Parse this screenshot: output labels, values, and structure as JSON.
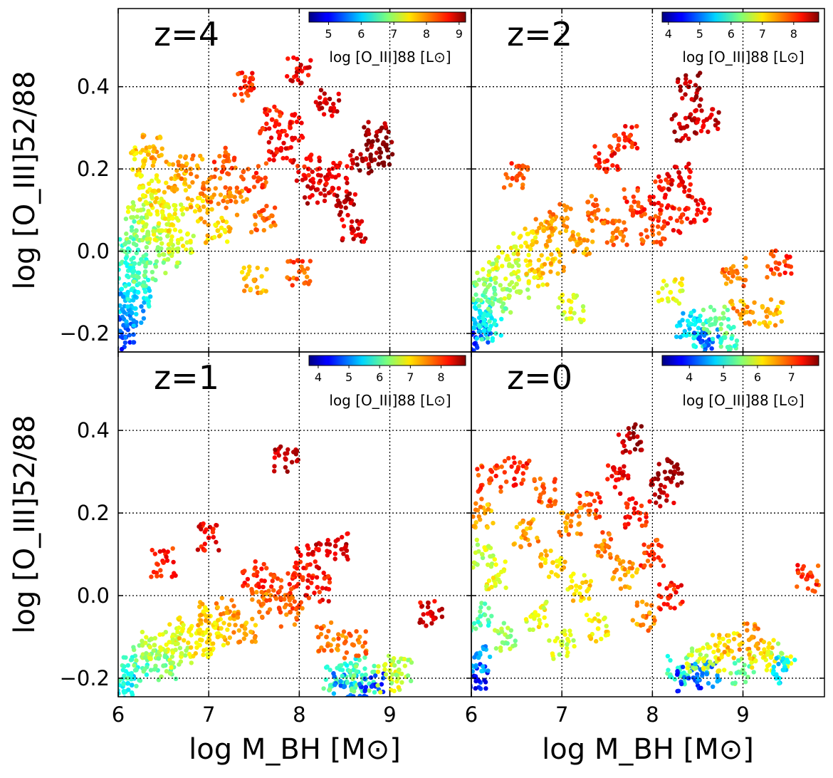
{
  "chart_data": {
    "type": "scatter",
    "colormap": "jet",
    "xlabel": "log M_BH [M⊙]",
    "ylabel": "log [O_III]52/88",
    "xlim": [
      6.0,
      9.9
    ],
    "ylim": [
      -0.245,
      0.59
    ],
    "x_ticks": [
      "6",
      "7",
      "8",
      "9"
    ],
    "y_ticks": [
      "−0.2",
      "0.0",
      "0.2",
      "0.4"
    ],
    "x_tick_values": [
      6,
      7,
      8,
      9
    ],
    "y_tick_values": [
      -0.2,
      0.0,
      0.2,
      0.4
    ],
    "grid": true,
    "colorbar_label": "log [O_III]88 [L⊙]",
    "colorbar_placement": "top-right",
    "panels": [
      {
        "label": "z=4",
        "colorbar_range": [
          4.4,
          9.2
        ],
        "colorbar_ticks": [
          "5",
          "6",
          "7",
          "8",
          "9"
        ],
        "colorbar_tick_values": [
          5,
          6,
          7,
          8,
          9
        ],
        "points": [
          [
            6.05,
            -0.21,
            5.2
          ],
          [
            6.06,
            -0.18,
            5.5
          ],
          [
            6.08,
            -0.12,
            5.9
          ],
          [
            6.1,
            -0.06,
            6.3
          ],
          [
            6.12,
            0.0,
            6.6
          ],
          [
            6.15,
            -0.15,
            5.8
          ],
          [
            6.18,
            -0.03,
            6.5
          ],
          [
            6.2,
            0.05,
            6.8
          ],
          [
            6.22,
            -0.1,
            6.2
          ],
          [
            6.25,
            0.1,
            7.1
          ],
          [
            6.28,
            0.22,
            7.6
          ],
          [
            6.3,
            -0.05,
            6.7
          ],
          [
            6.33,
            0.04,
            7.0
          ],
          [
            6.35,
            0.15,
            7.4
          ],
          [
            6.4,
            0.25,
            7.8
          ],
          [
            6.45,
            0.05,
            7.2
          ],
          [
            6.5,
            0.12,
            7.5
          ],
          [
            6.55,
            -0.02,
            7.0
          ],
          [
            6.6,
            0.08,
            7.4
          ],
          [
            6.65,
            0.18,
            7.7
          ],
          [
            6.7,
            0.03,
            7.3
          ],
          [
            6.8,
            0.2,
            7.9
          ],
          [
            6.9,
            0.1,
            7.7
          ],
          [
            7.0,
            0.15,
            8.0
          ],
          [
            7.1,
            0.05,
            7.6
          ],
          [
            7.2,
            0.22,
            8.2
          ],
          [
            7.3,
            0.12,
            8.0
          ],
          [
            7.4,
            0.4,
            8.4
          ],
          [
            7.5,
            0.18,
            8.3
          ],
          [
            7.6,
            0.08,
            8.1
          ],
          [
            7.7,
            0.32,
            8.5
          ],
          [
            7.8,
            0.25,
            8.6
          ],
          [
            7.9,
            0.3,
            8.5
          ],
          [
            8.0,
            0.44,
            8.7
          ],
          [
            8.1,
            0.2,
            8.6
          ],
          [
            8.2,
            0.15,
            8.8
          ],
          [
            8.3,
            0.36,
            8.8
          ],
          [
            8.4,
            0.18,
            8.7
          ],
          [
            8.5,
            0.12,
            8.9
          ],
          [
            8.6,
            0.05,
            8.8
          ],
          [
            8.7,
            0.22,
            9.0
          ],
          [
            8.85,
            0.28,
            9.1
          ],
          [
            8.9,
            0.24,
            9.2
          ],
          [
            8.0,
            -0.05,
            8.2
          ],
          [
            7.5,
            -0.07,
            7.8
          ]
        ]
      },
      {
        "label": "z=2",
        "colorbar_range": [
          3.8,
          8.8
        ],
        "colorbar_ticks": [
          "4",
          "5",
          "6",
          "7",
          "8"
        ],
        "colorbar_tick_values": [
          4,
          5,
          6,
          7,
          8
        ],
        "points": [
          [
            6.05,
            -0.21,
            4.6
          ],
          [
            6.08,
            -0.18,
            5.2
          ],
          [
            6.1,
            -0.15,
            5.6
          ],
          [
            6.15,
            -0.1,
            6.2
          ],
          [
            6.2,
            -0.05,
            6.6
          ],
          [
            6.3,
            -0.12,
            6.3
          ],
          [
            6.4,
            -0.02,
            6.8
          ],
          [
            6.5,
            -0.08,
            6.6
          ],
          [
            6.6,
            0.02,
            7.0
          ],
          [
            6.7,
            -0.05,
            7.1
          ],
          [
            6.8,
            0.05,
            7.3
          ],
          [
            6.9,
            -0.02,
            7.2
          ],
          [
            7.0,
            0.08,
            7.5
          ],
          [
            7.2,
            0.02,
            7.4
          ],
          [
            7.4,
            0.1,
            7.7
          ],
          [
            7.6,
            0.05,
            7.6
          ],
          [
            7.8,
            0.12,
            7.9
          ],
          [
            8.0,
            0.05,
            7.8
          ],
          [
            8.1,
            0.15,
            8.1
          ],
          [
            8.2,
            0.08,
            8.0
          ],
          [
            8.3,
            0.18,
            8.3
          ],
          [
            8.35,
            0.3,
            8.5
          ],
          [
            8.4,
            0.4,
            8.6
          ],
          [
            8.5,
            0.1,
            8.2
          ],
          [
            8.6,
            0.32,
            8.4
          ],
          [
            8.4,
            -0.18,
            5.5
          ],
          [
            8.5,
            -0.2,
            5.8
          ],
          [
            8.6,
            -0.22,
            4.9
          ],
          [
            8.7,
            -0.17,
            6.2
          ],
          [
            8.8,
            -0.21,
            6.0
          ],
          [
            8.9,
            -0.05,
            7.6
          ],
          [
            9.0,
            -0.15,
            7.4
          ],
          [
            9.4,
            -0.03,
            7.9
          ],
          [
            9.3,
            -0.15,
            7.3
          ],
          [
            6.5,
            0.18,
            7.8
          ],
          [
            7.7,
            0.27,
            8.0
          ],
          [
            7.5,
            0.22,
            8.1
          ],
          [
            6.2,
            -0.19,
            5.8
          ],
          [
            7.1,
            -0.14,
            6.8
          ],
          [
            8.2,
            -0.1,
            6.9
          ]
        ]
      },
      {
        "label": "z=1",
        "colorbar_range": [
          3.7,
          8.8
        ],
        "colorbar_ticks": [
          "4",
          "5",
          "6",
          "7",
          "8"
        ],
        "colorbar_tick_values": [
          4,
          5,
          6,
          7,
          8
        ],
        "points": [
          [
            6.05,
            -0.22,
            5.5
          ],
          [
            6.1,
            -0.2,
            5.8
          ],
          [
            6.2,
            -0.18,
            6.0
          ],
          [
            6.3,
            -0.15,
            6.3
          ],
          [
            6.4,
            -0.12,
            6.6
          ],
          [
            6.5,
            -0.17,
            6.2
          ],
          [
            6.6,
            -0.1,
            6.8
          ],
          [
            6.7,
            -0.14,
            6.6
          ],
          [
            6.8,
            -0.08,
            7.0
          ],
          [
            6.9,
            -0.12,
            6.9
          ],
          [
            7.0,
            -0.05,
            7.2
          ],
          [
            7.1,
            -0.1,
            7.1
          ],
          [
            7.2,
            -0.03,
            7.4
          ],
          [
            7.4,
            -0.08,
            7.3
          ],
          [
            7.6,
            -0.02,
            7.6
          ],
          [
            7.8,
            0.02,
            7.8
          ],
          [
            7.9,
            -0.04,
            7.7
          ],
          [
            8.0,
            0.05,
            8.0
          ],
          [
            8.1,
            0.1,
            8.3
          ],
          [
            8.2,
            0.02,
            8.1
          ],
          [
            8.3,
            -0.1,
            7.6
          ],
          [
            8.4,
            -0.2,
            6.0
          ],
          [
            8.5,
            -0.22,
            5.0
          ],
          [
            8.6,
            -0.18,
            5.8
          ],
          [
            8.7,
            -0.2,
            6.1
          ],
          [
            8.8,
            -0.22,
            4.6
          ],
          [
            9.0,
            -0.2,
            6.8
          ],
          [
            9.1,
            -0.18,
            6.5
          ],
          [
            9.45,
            -0.04,
            8.3
          ],
          [
            7.85,
            0.33,
            8.4
          ],
          [
            7.0,
            0.14,
            8.2
          ],
          [
            6.5,
            0.08,
            8.0
          ],
          [
            7.5,
            0.05,
            7.9
          ],
          [
            8.4,
            0.12,
            8.4
          ],
          [
            8.6,
            -0.12,
            7.6
          ]
        ]
      },
      {
        "label": "z=0",
        "colorbar_range": [
          3.2,
          7.8
        ],
        "colorbar_ticks": [
          "4",
          "5",
          "6",
          "7"
        ],
        "colorbar_tick_values": [
          4,
          5,
          6,
          7
        ],
        "points": [
          [
            6.05,
            -0.2,
            3.8
          ],
          [
            6.08,
            -0.15,
            4.6
          ],
          [
            6.1,
            -0.05,
            5.2
          ],
          [
            6.12,
            0.1,
            5.8
          ],
          [
            6.15,
            0.2,
            6.5
          ],
          [
            6.2,
            0.28,
            6.9
          ],
          [
            6.3,
            0.05,
            6.0
          ],
          [
            6.4,
            -0.1,
            5.6
          ],
          [
            6.5,
            0.3,
            7.1
          ],
          [
            6.6,
            0.15,
            6.5
          ],
          [
            6.7,
            -0.05,
            6.0
          ],
          [
            6.8,
            0.25,
            6.8
          ],
          [
            6.9,
            0.08,
            6.3
          ],
          [
            7.0,
            -0.12,
            5.9
          ],
          [
            7.1,
            0.18,
            6.6
          ],
          [
            7.2,
            0.02,
            6.2
          ],
          [
            7.3,
            0.22,
            6.9
          ],
          [
            7.4,
            -0.08,
            6.1
          ],
          [
            7.5,
            0.12,
            6.7
          ],
          [
            7.6,
            0.28,
            7.2
          ],
          [
            7.7,
            0.05,
            6.5
          ],
          [
            7.75,
            0.38,
            7.6
          ],
          [
            7.8,
            0.2,
            7.1
          ],
          [
            7.9,
            -0.05,
            6.6
          ],
          [
            8.0,
            0.1,
            7.0
          ],
          [
            8.1,
            0.25,
            7.5
          ],
          [
            8.2,
            0.0,
            7.1
          ],
          [
            8.2,
            0.3,
            7.7
          ],
          [
            8.3,
            -0.18,
            5.2
          ],
          [
            8.4,
            -0.2,
            4.0
          ],
          [
            8.5,
            -0.16,
            5.8
          ],
          [
            8.6,
            -0.19,
            4.4
          ],
          [
            8.7,
            -0.15,
            6.0
          ],
          [
            8.8,
            -0.12,
            6.3
          ],
          [
            9.0,
            -0.18,
            5.5
          ],
          [
            9.1,
            -0.1,
            6.5
          ],
          [
            9.2,
            -0.14,
            6.2
          ],
          [
            9.4,
            -0.15,
            5.9
          ],
          [
            9.45,
            -0.18,
            4.8
          ],
          [
            9.7,
            0.04,
            7.0
          ]
        ]
      }
    ]
  }
}
